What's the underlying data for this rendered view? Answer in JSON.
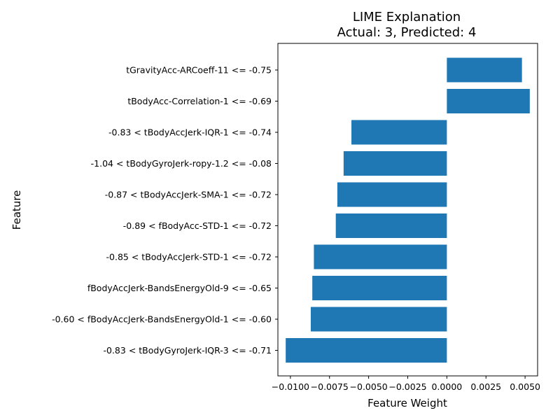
{
  "chart_data": {
    "type": "bar",
    "orientation": "horizontal",
    "title": "LIME Explanation",
    "subtitle": "Actual: 3, Predicted: 4",
    "xlabel": "Feature Weight",
    "ylabel": "Feature",
    "xlim": [
      -0.0108,
      0.0058
    ],
    "x_ticks": [
      -0.01,
      -0.0075,
      -0.005,
      -0.0025,
      0.0,
      0.0025,
      0.005
    ],
    "x_tick_labels": [
      "−0.0100",
      "−0.0075",
      "−0.0050",
      "−0.0025",
      "0.0000",
      "0.0025",
      "0.0050"
    ],
    "grid": false,
    "bar_color": "#1f77b4",
    "categories": [
      "tGravityAcc-ARCoeff-11 <= -0.75",
      "tBodyAcc-Correlation-1 <= -0.69",
      "-0.83 < tBodyAccJerk-IQR-1 <= -0.74",
      "-1.04 < tBodyGyroJerk-ropy-1.2 <= -0.08",
      "-0.87 < tBodyAccJerk-SMA-1 <= -0.72",
      "-0.89 < fBodyAcc-STD-1 <= -0.72",
      "-0.85 < tBodyAccJerk-STD-1 <= -0.72",
      "fBodyAccJerk-BandsEnergyOld-9 <= -0.65",
      "-0.60 < fBodyAccJerk-BandsEnergyOld-1 <= -0.60",
      "-0.83 < tBodyGyroJerk-IQR-3 <= -0.71"
    ],
    "values": [
      0.0048,
      0.0053,
      -0.0061,
      -0.0066,
      -0.007,
      -0.0071,
      -0.0085,
      -0.0086,
      -0.0087,
      -0.0103
    ]
  }
}
